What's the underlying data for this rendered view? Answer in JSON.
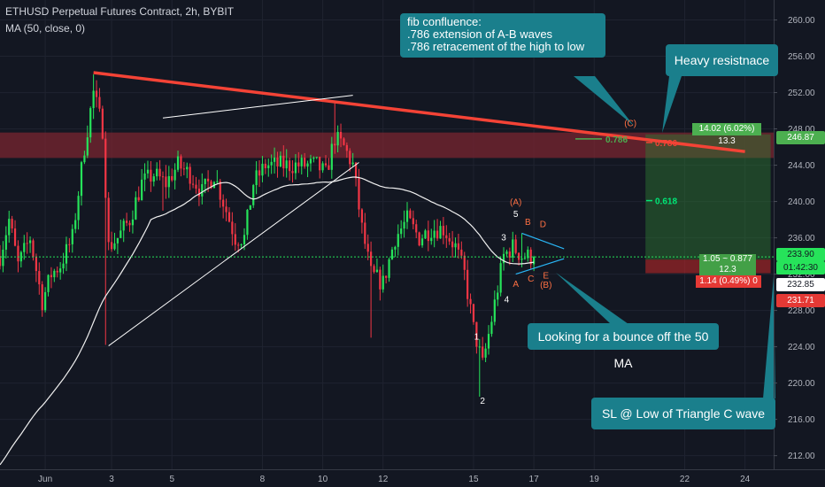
{
  "header": {
    "title": "ETHUSD Perpetual Futures Contract, 2h, BYBIT",
    "indicator": "MA (50, close, 0)"
  },
  "chart_data": {
    "type": "candlestick",
    "y_ticks": [
      "260.00",
      "256.00",
      "252.00",
      "248.00",
      "244.00",
      "240.00",
      "236.00",
      "232.00",
      "228.00",
      "224.00",
      "220.00",
      "216.00",
      "212.00"
    ],
    "y_tick_values": [
      260,
      256,
      252,
      248,
      244,
      240,
      236,
      232,
      228,
      224,
      220,
      216,
      212
    ],
    "ylim": [
      210.5,
      262.2
    ],
    "x_ticks": [
      "Jun",
      "3",
      "5",
      "8",
      "10",
      "12",
      "15",
      "17",
      "19",
      "22",
      "24"
    ],
    "x_tick_slots": [
      0.6,
      2.8,
      4.8,
      7.8,
      9.8,
      11.8,
      14.8,
      16.8,
      18.8,
      21.8,
      23.8
    ],
    "x_slot_range": [
      -0.9,
      24.75
    ],
    "last_price": 233.9,
    "axis_tags": {
      "target_price": "246.87",
      "last_price": "233.90",
      "countdown": "01:42:30",
      "mid_price": "232.85",
      "stop_price": "231.71"
    },
    "fib_levels": [
      {
        "label": "0.786",
        "price": 246.9,
        "color": "#4caf50"
      },
      {
        "label": "0.786",
        "price": 246.5,
        "color": "#f44336"
      },
      {
        "label": "0.618",
        "price": 240.1,
        "color": "#00e676"
      }
    ],
    "wave_labels": {
      "impulse": [
        "1",
        "2",
        "3",
        "4",
        "5"
      ],
      "triangle": [
        "A",
        "B",
        "C",
        "D",
        "E"
      ],
      "corrective": [
        "(A)",
        "(B)",
        "(C)"
      ]
    },
    "position": {
      "target_label": "14.02 (6.02%) 13.3",
      "ratio_label": "1.05 ~ 0.877",
      "ratio_sub": "12.3",
      "stop_label": "1.14 (0.49%) 0"
    }
  },
  "annotations": {
    "fib_title": "fib confluence:",
    "fib_line1": ".786 extension of A-B waves",
    "fib_line2": ".786 retracement of the high to low",
    "heavy_resistance": "Heavy resistnace",
    "bounce": "Looking for a bounce off the 50 MA",
    "stop_loss": "SL @ Low of Triangle C wave"
  },
  "colors": {
    "up": "#26e35a",
    "down": "#f23645",
    "ma": "#f0f0f0",
    "trend": "#f44336",
    "callout": "#1a7f8c",
    "zone": "#7a2530"
  }
}
